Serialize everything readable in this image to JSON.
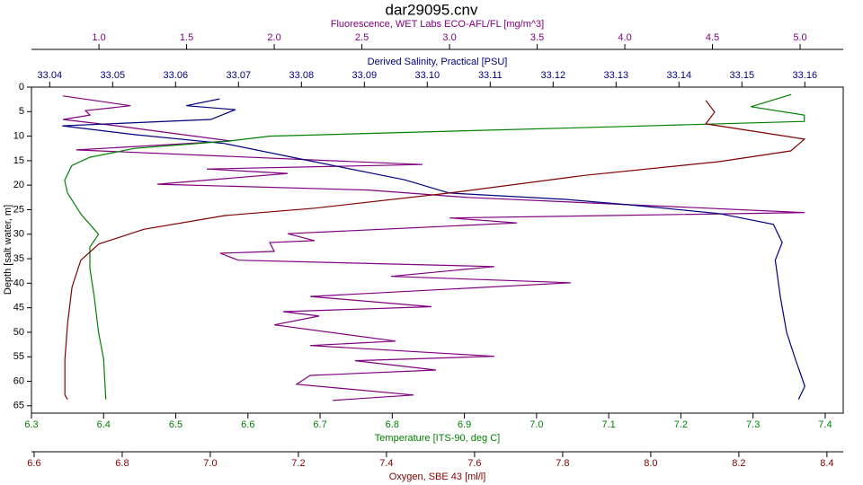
{
  "chart_data": {
    "type": "profile",
    "title": "dar29095.cnv",
    "y_label": "Depth [salt water, m]",
    "ylim": [
      0,
      66.5
    ],
    "yticks": [
      0,
      5,
      10,
      15,
      20,
      25,
      30,
      35,
      40,
      45,
      50,
      55,
      60,
      65
    ],
    "y_inverted": true,
    "axes": [
      {
        "label": "Fluorescence, WET Labs ECO-AFL/FL [mg/m^3]",
        "color": "#800080",
        "position": "top",
        "xlim": [
          0.615,
          5.246
        ],
        "xticks": [
          {
            "value": 1.0,
            "label": "1.0"
          },
          1.5,
          {
            "value": 2.0,
            "label": "2.0"
          },
          2.5,
          {
            "value": 3.0,
            "label": "3.0"
          },
          3.5,
          {
            "value": 4.0,
            "label": "4.0"
          },
          4.5,
          {
            "value": 5.0,
            "label": "5.0"
          }
        ]
      },
      {
        "label": "Derived Salinity, Practical [PSU]",
        "color": "#000080",
        "position": "top",
        "xlim": [
          33.0371,
          33.1661
        ],
        "xticks": [
          33.04,
          33.05,
          33.06,
          33.07,
          33.08,
          33.09,
          {
            "value": 33.1,
            "label": "33.10"
          },
          33.11,
          33.12,
          33.13,
          33.14,
          33.15,
          33.16
        ]
      },
      {
        "label": "Temperature [ITS-90, deg C]",
        "color": "#008000",
        "position": "bottom",
        "xlim": [
          6.3,
          7.425
        ],
        "xticks": [
          6.3,
          6.4,
          6.5,
          6.6,
          6.7,
          6.8,
          6.9,
          {
            "value": 7.0,
            "label": "7.0"
          },
          7.1,
          7.2,
          7.3,
          7.4
        ]
      },
      {
        "label": "Oxygen, SBE 43 [ml/l]",
        "color": "#800000",
        "position": "bottom",
        "xlim": [
          6.594,
          8.437
        ],
        "xticks": [
          6.6,
          6.8,
          {
            "value": 7.0,
            "label": "7.0"
          },
          7.2,
          7.4,
          7.6,
          7.8,
          {
            "value": 8.0,
            "label": "8.0"
          },
          8.2,
          8.4
        ]
      }
    ],
    "series": [
      {
        "name": "Fluorescence",
        "axis": 0,
        "color": "#800080",
        "values": [
          0.795,
          1.18,
          0.923,
          0.949,
          0.795,
          1.102,
          1.753,
          0.871,
          2.846,
          1.615,
          2.077,
          1.333,
          2.538,
          3.103,
          5.026,
          3.0,
          3.385,
          2.077,
          2.23,
          1.974,
          2.0,
          1.692,
          1.795,
          3.256,
          2.667,
          3.692,
          2.205,
          2.897,
          2.051,
          2.256,
          2.0,
          2.692,
          2.205,
          3.256,
          2.461,
          2.923,
          2.205,
          2.128,
          2.795,
          2.333
        ],
        "depth": [
          1.8,
          3.8,
          4.8,
          5.7,
          6.6,
          7.9,
          11.0,
          12.8,
          15.8,
          16.7,
          17.6,
          19.8,
          21.0,
          22.5,
          25.6,
          26.7,
          27.7,
          29.9,
          31.3,
          31.7,
          33.5,
          33.9,
          35.3,
          36.6,
          38.6,
          39.9,
          42.7,
          44.8,
          45.8,
          46.7,
          48.5,
          51.8,
          52.7,
          54.9,
          55.8,
          57.7,
          58.8,
          60.6,
          62.8,
          63.9
        ]
      },
      {
        "name": "Salinity",
        "axis": 1,
        "color": "#000080",
        "values": [
          33.067,
          33.0617,
          33.0695,
          33.0656,
          33.042,
          33.0535,
          33.0678,
          33.082,
          33.0964,
          33.1035,
          33.122,
          33.132,
          33.1464,
          33.155,
          33.1564,
          33.1553,
          33.1561,
          33.1571,
          33.1585,
          33.16,
          33.159
        ],
        "depth": [
          2.4,
          3.8,
          4.6,
          6.6,
          7.9,
          9.7,
          11.5,
          15.2,
          18.9,
          21.6,
          22.9,
          24.0,
          25.8,
          28.0,
          31.7,
          35.3,
          42.7,
          50.0,
          55.5,
          61.0,
          63.7
        ]
      },
      {
        "name": "Temperature",
        "axis": 2,
        "color": "#008000",
        "values": [
          7.353,
          7.297,
          7.371,
          7.371,
          7.128,
          6.879,
          6.63,
          6.574,
          6.443,
          6.381,
          6.356,
          6.346,
          6.35,
          6.369,
          6.387,
          6.393,
          6.381,
          6.381,
          6.387,
          6.393,
          6.4,
          6.403
        ],
        "depth": [
          1.5,
          4.0,
          5.7,
          7.0,
          8.0,
          9.0,
          10.0,
          11.0,
          12.5,
          14.3,
          16.0,
          19.0,
          21.6,
          26.0,
          29.0,
          30.0,
          32.6,
          37.0,
          42.7,
          50.0,
          55.5,
          63.7
        ]
      },
      {
        "name": "Oxygen",
        "axis": 3,
        "color": "#800000",
        "values": [
          8.125,
          8.145,
          8.125,
          8.349,
          8.318,
          8.155,
          7.849,
          7.543,
          7.237,
          7.033,
          6.849,
          6.747,
          6.706,
          6.686,
          6.676,
          6.67,
          6.67,
          6.676
        ],
        "depth": [
          2.7,
          5.1,
          7.5,
          10.6,
          13.0,
          15.2,
          18.0,
          21.6,
          24.7,
          26.2,
          29.0,
          32.0,
          35.3,
          40.8,
          48.2,
          55.5,
          62.8,
          63.7
        ]
      }
    ]
  }
}
